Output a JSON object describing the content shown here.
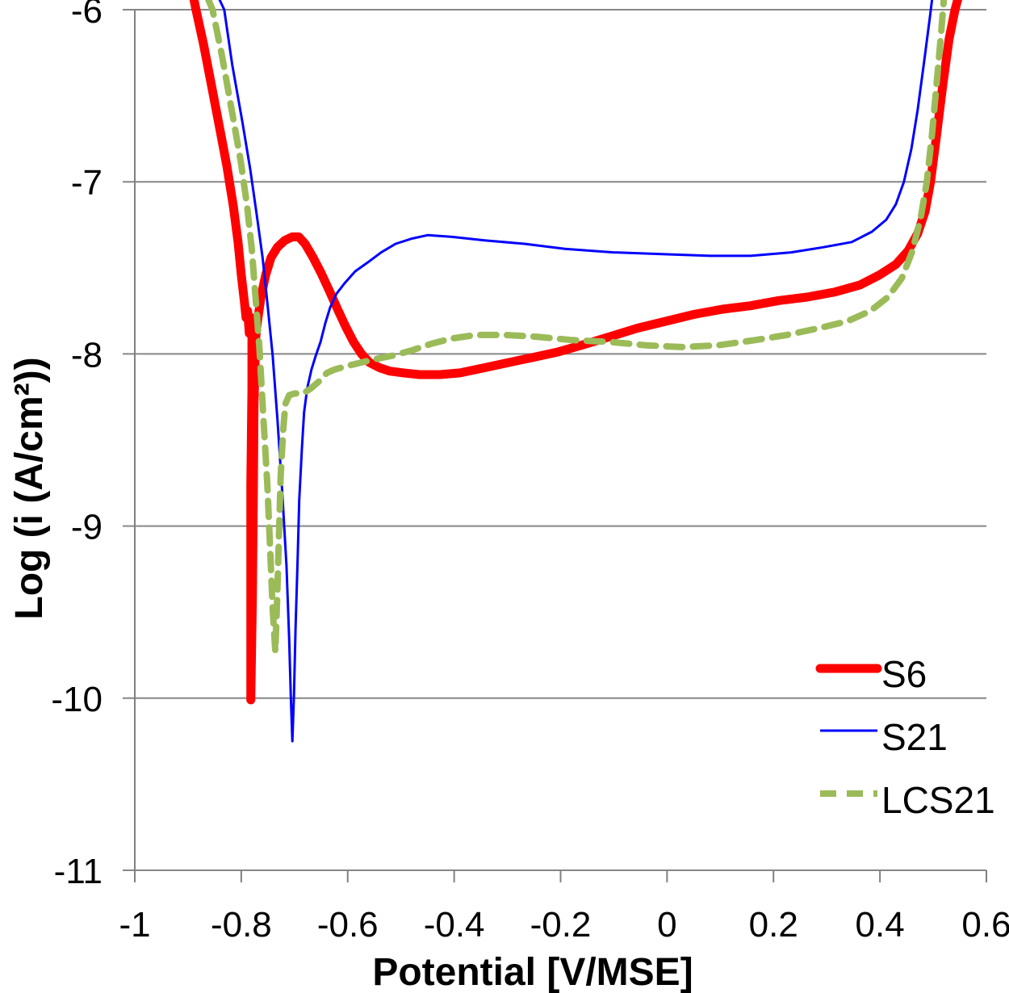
{
  "figure": {
    "type": "polarization-curve-chart",
    "background": "#ffffff"
  },
  "chart_data": {
    "type": "line",
    "title": "",
    "xlabel": "Potential [V/MSE]",
    "ylabel": "Log (i (A/cm²))",
    "xlim": [
      -1,
      0.6
    ],
    "ylim": [
      -11,
      -6
    ],
    "grid": "horizontal",
    "legend_position": "inside-bottom-right",
    "x_ticks": [
      {
        "value": -1,
        "label": "-1"
      },
      {
        "value": -0.8,
        "label": "-0.8"
      },
      {
        "value": -0.6,
        "label": "-0.6"
      },
      {
        "value": -0.4,
        "label": "-0.4"
      },
      {
        "value": -0.2,
        "label": "-0.2"
      },
      {
        "value": 0,
        "label": "0"
      },
      {
        "value": 0.2,
        "label": "0.2"
      },
      {
        "value": 0.4,
        "label": "0.4"
      },
      {
        "value": 0.6,
        "label": "0.6"
      }
    ],
    "y_ticks": [
      {
        "value": -6,
        "label": "-6"
      },
      {
        "value": -7,
        "label": "-7"
      },
      {
        "value": -8,
        "label": "-8"
      },
      {
        "value": -9,
        "label": "-9"
      },
      {
        "value": -10,
        "label": "-10"
      },
      {
        "value": -11,
        "label": "-11"
      }
    ],
    "series": [
      {
        "name": "S6",
        "color": "#fe0000",
        "style": "solid",
        "width": 11,
        "dash": "",
        "points": [
          [
            -0.889,
            -5.94
          ],
          [
            -0.885,
            -6.0
          ],
          [
            -0.871,
            -6.2
          ],
          [
            -0.856,
            -6.44
          ],
          [
            -0.841,
            -6.68
          ],
          [
            -0.827,
            -6.91
          ],
          [
            -0.815,
            -7.14
          ],
          [
            -0.806,
            -7.35
          ],
          [
            -0.8,
            -7.54
          ],
          [
            -0.794,
            -7.7
          ],
          [
            -0.791,
            -7.79
          ],
          [
            -0.788,
            -7.75
          ],
          [
            -0.785,
            -7.88
          ],
          [
            -0.782,
            -7.82
          ],
          [
            -0.78,
            -7.79
          ],
          [
            -0.78,
            -8.2
          ],
          [
            -0.782,
            -8.76
          ],
          [
            -0.782,
            -9.41
          ],
          [
            -0.782,
            -10.01
          ],
          [
            -0.779,
            -9.41
          ],
          [
            -0.777,
            -8.76
          ],
          [
            -0.776,
            -8.29
          ],
          [
            -0.774,
            -8.05
          ],
          [
            -0.773,
            -7.91
          ],
          [
            -0.77,
            -7.82
          ],
          [
            -0.763,
            -7.67
          ],
          [
            -0.754,
            -7.54
          ],
          [
            -0.744,
            -7.44
          ],
          [
            -0.732,
            -7.38
          ],
          [
            -0.718,
            -7.34
          ],
          [
            -0.704,
            -7.32
          ],
          [
            -0.692,
            -7.32
          ],
          [
            -0.68,
            -7.36
          ],
          [
            -0.665,
            -7.44
          ],
          [
            -0.65,
            -7.53
          ],
          [
            -0.635,
            -7.63
          ],
          [
            -0.619,
            -7.74
          ],
          [
            -0.604,
            -7.84
          ],
          [
            -0.589,
            -7.93
          ],
          [
            -0.574,
            -8.0
          ],
          [
            -0.559,
            -8.05
          ],
          [
            -0.54,
            -8.08
          ],
          [
            -0.521,
            -8.1
          ],
          [
            -0.495,
            -8.11
          ],
          [
            -0.465,
            -8.12
          ],
          [
            -0.427,
            -8.12
          ],
          [
            -0.389,
            -8.11
          ],
          [
            -0.343,
            -8.08
          ],
          [
            -0.298,
            -8.05
          ],
          [
            -0.252,
            -8.02
          ],
          [
            -0.207,
            -7.99
          ],
          [
            -0.161,
            -7.95
          ],
          [
            -0.108,
            -7.9
          ],
          [
            -0.055,
            -7.85
          ],
          [
            -0.002,
            -7.81
          ],
          [
            0.051,
            -7.77
          ],
          [
            0.104,
            -7.74
          ],
          [
            0.157,
            -7.72
          ],
          [
            0.21,
            -7.69
          ],
          [
            0.263,
            -7.67
          ],
          [
            0.316,
            -7.64
          ],
          [
            0.362,
            -7.6
          ],
          [
            0.4,
            -7.54
          ],
          [
            0.43,
            -7.48
          ],
          [
            0.453,
            -7.4
          ],
          [
            0.471,
            -7.3
          ],
          [
            0.485,
            -7.17
          ],
          [
            0.495,
            -7.0
          ],
          [
            0.506,
            -6.74
          ],
          [
            0.518,
            -6.44
          ],
          [
            0.53,
            -6.17
          ],
          [
            0.541,
            -6.0
          ],
          [
            0.547,
            -5.93
          ]
        ]
      },
      {
        "name": "S21",
        "color": "#0000fe",
        "style": "solid",
        "width": 3,
        "dash": "",
        "points": [
          [
            -0.841,
            -5.94
          ],
          [
            -0.832,
            -6.0
          ],
          [
            -0.817,
            -6.32
          ],
          [
            -0.798,
            -6.65
          ],
          [
            -0.783,
            -6.93
          ],
          [
            -0.771,
            -7.19
          ],
          [
            -0.76,
            -7.44
          ],
          [
            -0.75,
            -7.73
          ],
          [
            -0.741,
            -8.01
          ],
          [
            -0.732,
            -8.38
          ],
          [
            -0.723,
            -8.8
          ],
          [
            -0.715,
            -9.23
          ],
          [
            -0.71,
            -9.65
          ],
          [
            -0.707,
            -9.98
          ],
          [
            -0.704,
            -10.25
          ],
          [
            -0.701,
            -9.98
          ],
          [
            -0.698,
            -9.6
          ],
          [
            -0.694,
            -9.18
          ],
          [
            -0.691,
            -8.85
          ],
          [
            -0.686,
            -8.55
          ],
          [
            -0.682,
            -8.34
          ],
          [
            -0.676,
            -8.2
          ],
          [
            -0.668,
            -8.09
          ],
          [
            -0.66,
            -8.01
          ],
          [
            -0.651,
            -7.93
          ],
          [
            -0.642,
            -7.82
          ],
          [
            -0.633,
            -7.73
          ],
          [
            -0.621,
            -7.65
          ],
          [
            -0.606,
            -7.59
          ],
          [
            -0.586,
            -7.52
          ],
          [
            -0.563,
            -7.47
          ],
          [
            -0.537,
            -7.41
          ],
          [
            -0.51,
            -7.36
          ],
          [
            -0.48,
            -7.33
          ],
          [
            -0.45,
            -7.31
          ],
          [
            -0.404,
            -7.32
          ],
          [
            -0.343,
            -7.34
          ],
          [
            -0.268,
            -7.36
          ],
          [
            -0.192,
            -7.39
          ],
          [
            -0.101,
            -7.41
          ],
          [
            -0.01,
            -7.42
          ],
          [
            0.081,
            -7.43
          ],
          [
            0.157,
            -7.43
          ],
          [
            0.233,
            -7.41
          ],
          [
            0.294,
            -7.38
          ],
          [
            0.347,
            -7.35
          ],
          [
            0.385,
            -7.29
          ],
          [
            0.412,
            -7.22
          ],
          [
            0.43,
            -7.13
          ],
          [
            0.445,
            -7.0
          ],
          [
            0.459,
            -6.81
          ],
          [
            0.471,
            -6.58
          ],
          [
            0.483,
            -6.3
          ],
          [
            0.494,
            -6.04
          ],
          [
            0.498,
            -5.94
          ]
        ]
      },
      {
        "name": "LCS21",
        "color": "#9bbb59",
        "style": "dashed",
        "width": 8,
        "dash": "20 13",
        "points": [
          [
            -0.862,
            -5.94
          ],
          [
            -0.854,
            -6.0
          ],
          [
            -0.836,
            -6.27
          ],
          [
            -0.817,
            -6.6
          ],
          [
            -0.801,
            -6.88
          ],
          [
            -0.789,
            -7.14
          ],
          [
            -0.78,
            -7.4
          ],
          [
            -0.773,
            -7.68
          ],
          [
            -0.766,
            -7.96
          ],
          [
            -0.759,
            -8.34
          ],
          [
            -0.751,
            -8.76
          ],
          [
            -0.745,
            -9.18
          ],
          [
            -0.741,
            -9.48
          ],
          [
            -0.736,
            -9.73
          ],
          [
            -0.733,
            -9.46
          ],
          [
            -0.729,
            -9.04
          ],
          [
            -0.726,
            -8.71
          ],
          [
            -0.721,
            -8.43
          ],
          [
            -0.717,
            -8.29
          ],
          [
            -0.71,
            -8.24
          ],
          [
            -0.7,
            -8.23
          ],
          [
            -0.684,
            -8.23
          ],
          [
            -0.669,
            -8.2
          ],
          [
            -0.654,
            -8.16
          ],
          [
            -0.639,
            -8.11
          ],
          [
            -0.624,
            -8.09
          ],
          [
            -0.601,
            -8.07
          ],
          [
            -0.575,
            -8.05
          ],
          [
            -0.548,
            -8.03
          ],
          [
            -0.515,
            -8.01
          ],
          [
            -0.48,
            -7.98
          ],
          [
            -0.442,
            -7.94
          ],
          [
            -0.404,
            -7.91
          ],
          [
            -0.359,
            -7.89
          ],
          [
            -0.305,
            -7.89
          ],
          [
            -0.245,
            -7.9
          ],
          [
            -0.177,
            -7.92
          ],
          [
            -0.108,
            -7.93
          ],
          [
            -0.04,
            -7.95
          ],
          [
            0.028,
            -7.96
          ],
          [
            0.096,
            -7.95
          ],
          [
            0.165,
            -7.92
          ],
          [
            0.225,
            -7.89
          ],
          [
            0.286,
            -7.85
          ],
          [
            0.339,
            -7.81
          ],
          [
            0.382,
            -7.75
          ],
          [
            0.415,
            -7.67
          ],
          [
            0.441,
            -7.56
          ],
          [
            0.46,
            -7.41
          ],
          [
            0.476,
            -7.22
          ],
          [
            0.488,
            -7.0
          ],
          [
            0.498,
            -6.72
          ],
          [
            0.507,
            -6.41
          ],
          [
            0.515,
            -6.13
          ],
          [
            0.52,
            -5.94
          ]
        ]
      }
    ]
  },
  "legend": {
    "items": [
      {
        "label": "S6"
      },
      {
        "label": "S21"
      },
      {
        "label": "LCS21"
      }
    ]
  }
}
